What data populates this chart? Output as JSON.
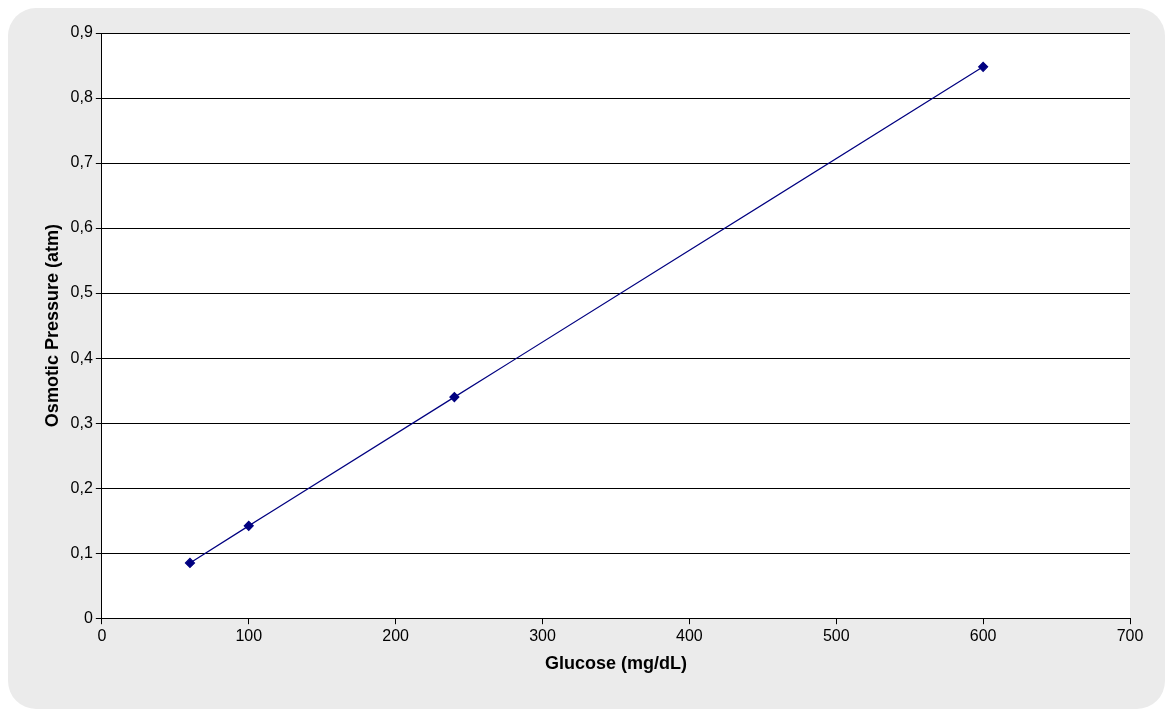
{
  "chart_data": {
    "type": "line",
    "xlabel": "Glucose (mg/dL)",
    "ylabel": "Osmotic Pressure (atm)",
    "x": [
      60,
      100,
      240,
      600
    ],
    "series": [
      {
        "color": "#000080",
        "values": [
          0.085,
          0.142,
          0.34,
          0.848
        ]
      }
    ],
    "xlim": [
      0,
      700
    ],
    "xticks": [
      0,
      100,
      200,
      300,
      400,
      500,
      600,
      700
    ],
    "ylim": [
      0,
      0.9
    ],
    "yticks": [
      {
        "value": 0,
        "label": "0"
      },
      {
        "value": 0.1,
        "label": "0,1"
      },
      {
        "value": 0.2,
        "label": "0,2"
      },
      {
        "value": 0.3,
        "label": "0,3"
      },
      {
        "value": 0.4,
        "label": "0,4"
      },
      {
        "value": 0.5,
        "label": "0,5"
      },
      {
        "value": 0.6,
        "label": "0,6"
      },
      {
        "value": 0.7,
        "label": "0,7"
      },
      {
        "value": 0.8,
        "label": "0,8"
      },
      {
        "value": 0.9,
        "label": "0,9"
      }
    ],
    "grid": "y",
    "marker": "diamond",
    "line_style": "solid",
    "legend": false
  }
}
